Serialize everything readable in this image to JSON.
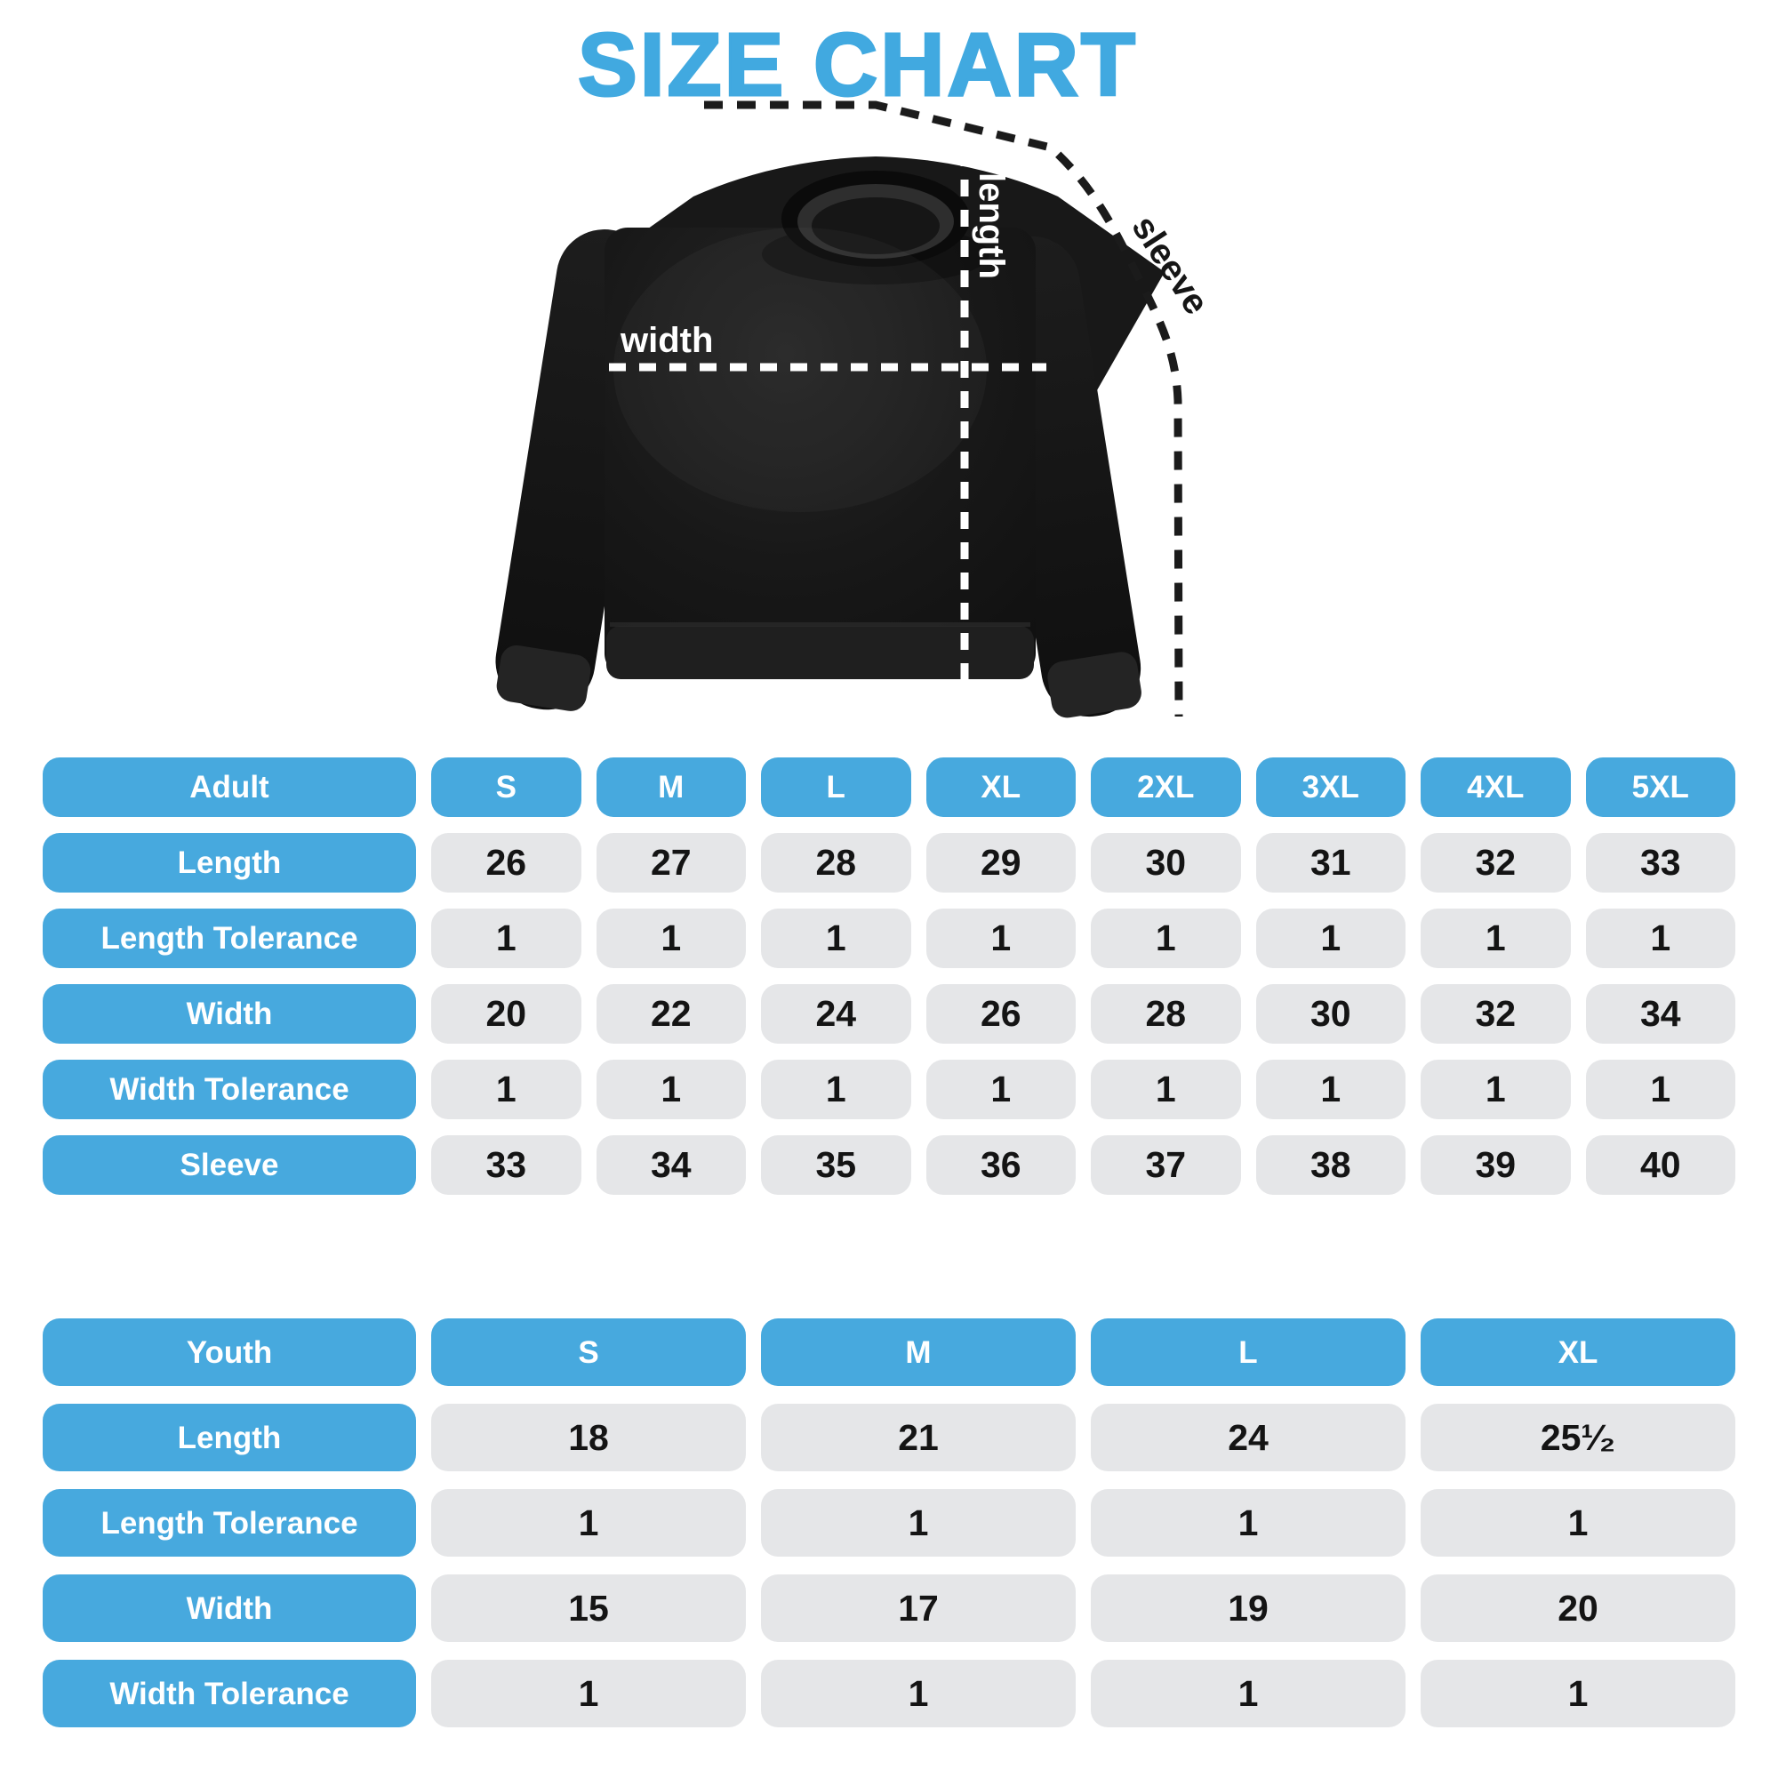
{
  "title": "SIZE CHART",
  "colors": {
    "accent_blue": "#47A9DE",
    "title_blue": "#41A9E0",
    "cell_gray": "#E5E6E8",
    "shirt_black": "#161616",
    "line_white": "#ffffff",
    "line_black": "#1b1b1b"
  },
  "diagram": {
    "labels": {
      "length": "length",
      "width": "width",
      "sleeve": "sleeve"
    }
  },
  "adult_table": {
    "header": [
      "Adult",
      "S",
      "M",
      "L",
      "XL",
      "2XL",
      "3XL",
      "4XL",
      "5XL"
    ],
    "rows": [
      {
        "label": "Length",
        "values": [
          "26",
          "27",
          "28",
          "29",
          "30",
          "31",
          "32",
          "33"
        ]
      },
      {
        "label": "Length Tolerance",
        "values": [
          "1",
          "1",
          "1",
          "1",
          "1",
          "1",
          "1",
          "1"
        ]
      },
      {
        "label": "Width",
        "values": [
          "20",
          "22",
          "24",
          "26",
          "28",
          "30",
          "32",
          "34"
        ]
      },
      {
        "label": "Width Tolerance",
        "values": [
          "1",
          "1",
          "1",
          "1",
          "1",
          "1",
          "1",
          "1"
        ]
      },
      {
        "label": "Sleeve",
        "values": [
          "33",
          "34",
          "35",
          "36",
          "37",
          "38",
          "39",
          "40"
        ]
      }
    ]
  },
  "youth_table": {
    "header": [
      "Youth",
      "S",
      "M",
      "L",
      "XL"
    ],
    "rows": [
      {
        "label": "Length",
        "values": [
          "18",
          "21",
          "24",
          "25¹⁄₂"
        ]
      },
      {
        "label": "Length Tolerance",
        "values": [
          "1",
          "1",
          "1",
          "1"
        ]
      },
      {
        "label": "Width",
        "values": [
          "15",
          "17",
          "19",
          "20"
        ]
      },
      {
        "label": "Width Tolerance",
        "values": [
          "1",
          "1",
          "1",
          "1"
        ]
      }
    ]
  }
}
